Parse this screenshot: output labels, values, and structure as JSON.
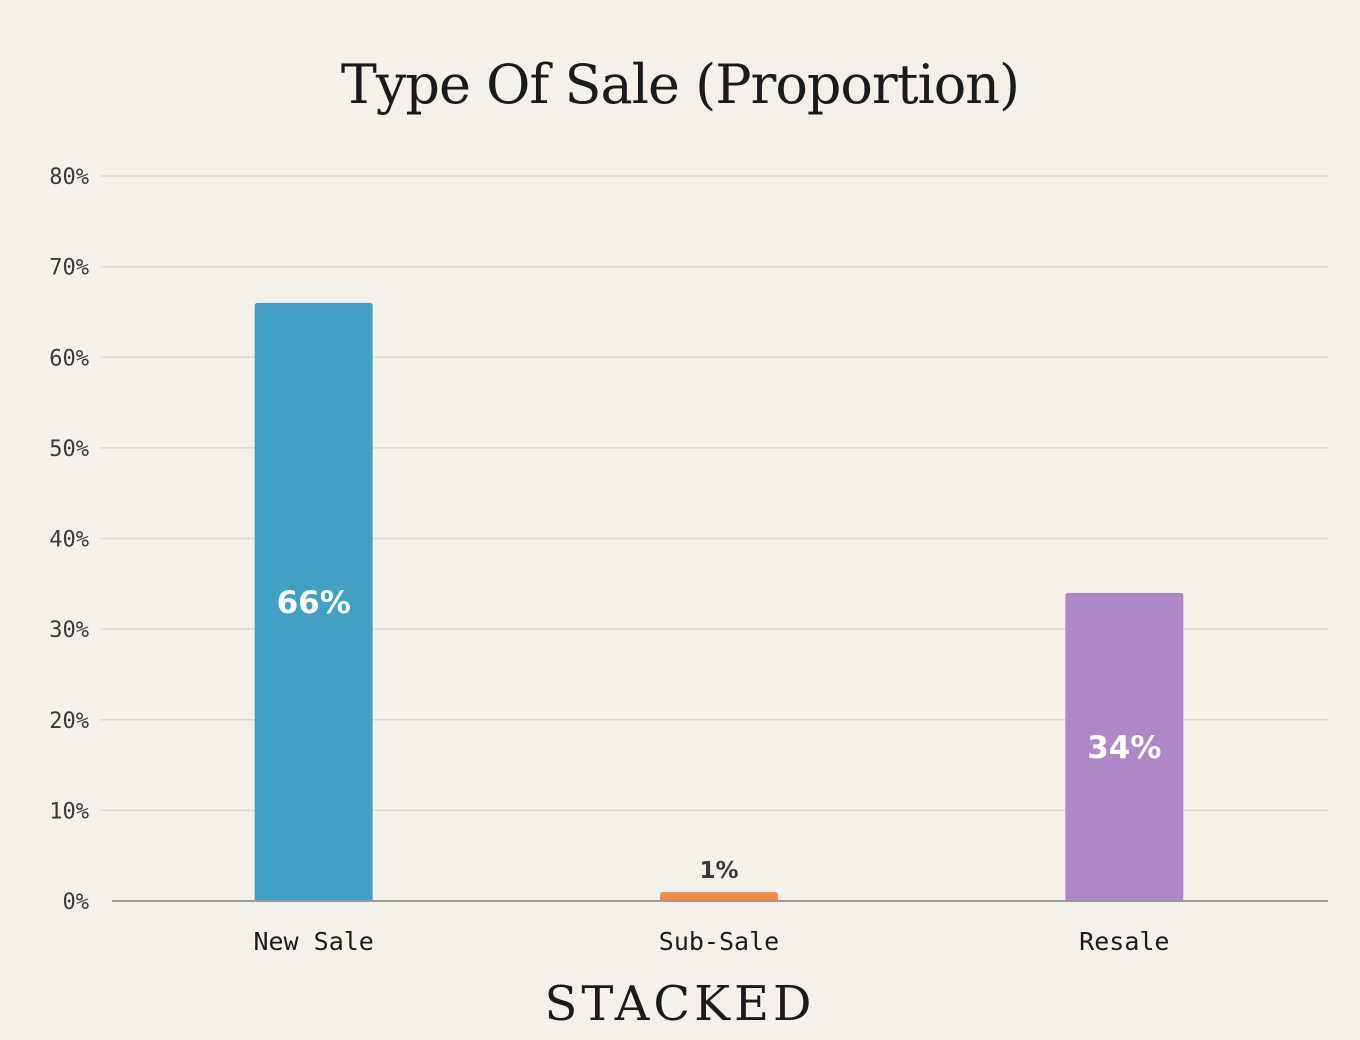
{
  "chart_data": {
    "type": "bar",
    "title": "Type Of Sale (Proportion)",
    "xlabel": "",
    "ylabel": "",
    "categories": [
      "New Sale",
      "Sub-Sale",
      "Resale"
    ],
    "values": [
      66,
      1,
      34
    ],
    "data_labels": [
      "66%",
      "1%",
      "34%"
    ],
    "colors": [
      "#42a1c2",
      "#f28b47",
      "#ae88c6"
    ],
    "ylim": [
      0,
      80
    ],
    "yticks": [
      0,
      10,
      20,
      30,
      40,
      50,
      60,
      70,
      80
    ],
    "ytick_labels": [
      "0%",
      "10%",
      "20%",
      "30%",
      "40%",
      "50%",
      "60%",
      "70%",
      "80%"
    ],
    "grid": true,
    "legend": "none"
  },
  "brand": "STACKED"
}
